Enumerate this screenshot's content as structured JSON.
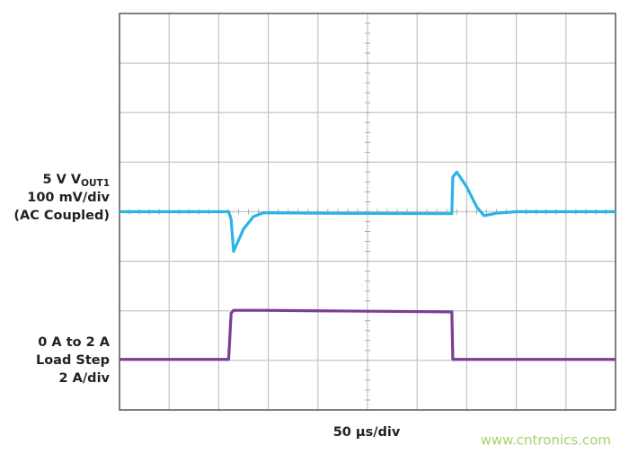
{
  "chart_data": {
    "type": "line",
    "xlabel": "50 µs/div",
    "channel_labels": [
      {
        "name": "5 V V",
        "subscript": "OUT1",
        "lines": [
          "100 mV/div",
          "(AC Coupled)"
        ]
      },
      {
        "lines": [
          "0 A to 2 A",
          "Load Step",
          "2 A/div"
        ]
      }
    ],
    "watermark": "www.cntronics.com",
    "xlim": [
      0,
      10
    ],
    "ylim": [
      0,
      8
    ],
    "grid": true,
    "x": [
      0,
      2.2,
      2.25,
      2.3,
      2.5,
      2.7,
      2.9,
      4,
      6.7,
      6.72,
      6.8,
      7,
      7.2,
      7.35,
      7.6,
      8,
      10
    ],
    "series": [
      {
        "color": "#29b4e6",
        "values": [
          4,
          4,
          3.85,
          3.2,
          3.65,
          3.9,
          3.98,
          3.97,
          3.96,
          4.7,
          4.8,
          4.5,
          4.1,
          3.92,
          3.97,
          4,
          4
        ]
      },
      {
        "color": "#7a3e96",
        "values": [
          1.02,
          1.02,
          1.95,
          2.01,
          2.01,
          2.01,
          2.01,
          2.0,
          1.98,
          1.02,
          1.02,
          1.02,
          1.02,
          1.02,
          1.02,
          1.02,
          1.02
        ]
      }
    ]
  }
}
